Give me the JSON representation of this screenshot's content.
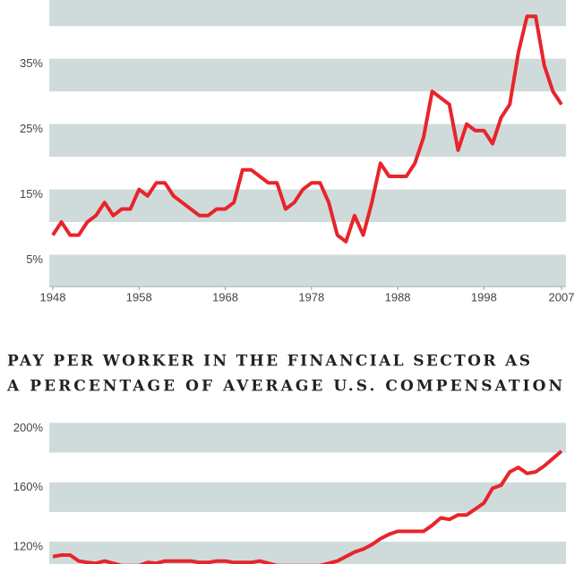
{
  "chart_data": [
    {
      "type": "line",
      "x": [
        1948,
        1949,
        1950,
        1951,
        1952,
        1953,
        1954,
        1955,
        1956,
        1957,
        1958,
        1959,
        1960,
        1961,
        1962,
        1963,
        1964,
        1965,
        1966,
        1967,
        1968,
        1969,
        1970,
        1971,
        1972,
        1973,
        1974,
        1975,
        1976,
        1977,
        1978,
        1979,
        1980,
        1981,
        1982,
        1983,
        1984,
        1985,
        1986,
        1987,
        1988,
        1989,
        1990,
        1991,
        1992,
        1993,
        1994,
        1995,
        1996,
        1997,
        1998,
        1999,
        2000,
        2001,
        2002,
        2003,
        2004,
        2005,
        2006,
        2007
      ],
      "values": [
        8,
        10,
        8,
        8,
        10,
        11,
        13,
        11,
        12,
        12,
        15,
        14,
        16,
        16,
        14,
        13,
        12,
        11,
        11,
        12,
        12,
        13,
        18,
        18,
        17,
        16,
        16,
        12,
        13,
        15,
        16,
        16,
        13,
        8,
        7,
        11,
        8,
        13,
        19,
        17,
        17,
        17,
        19,
        23,
        30,
        29,
        28,
        21,
        25,
        24,
        24,
        22,
        26,
        28,
        36,
        41.5,
        41.5,
        34,
        30,
        28
      ],
      "color": "#e8242c",
      "xlim": [
        1948,
        2007
      ],
      "xticks": [
        1948,
        1958,
        1968,
        1978,
        1988,
        1998,
        2007
      ],
      "ylim": [
        0,
        44
      ],
      "yticks": [
        {
          "value": 5,
          "label": "5%"
        },
        {
          "value": 15,
          "label": "15%"
        },
        {
          "value": 25,
          "label": "25%"
        },
        {
          "value": 35,
          "label": "35%"
        }
      ],
      "grid": "bands"
    },
    {
      "type": "line",
      "title": [
        "PAY PER WORKER IN THE FINANCIAL SECTOR AS",
        "A PERCENTAGE OF AVERAGE U.S. COMPENSATION"
      ],
      "x": [
        1948,
        1949,
        1950,
        1951,
        1952,
        1953,
        1954,
        1955,
        1956,
        1957,
        1958,
        1959,
        1960,
        1961,
        1962,
        1963,
        1964,
        1965,
        1966,
        1967,
        1968,
        1969,
        1970,
        1971,
        1972,
        1973,
        1974,
        1975,
        1976,
        1977,
        1978,
        1979,
        1980,
        1981,
        1982,
        1983,
        1984,
        1985,
        1986,
        1987,
        1988,
        1989,
        1990,
        1991,
        1992,
        1993,
        1994,
        1995,
        1996,
        1997,
        1998,
        1999,
        2000,
        2001,
        2002,
        2003,
        2004,
        2005,
        2006,
        2007
      ],
      "values": [
        110,
        111,
        111,
        107,
        106,
        105.5,
        107,
        105.5,
        104,
        104,
        104,
        106,
        105.5,
        107,
        107,
        107,
        107,
        106,
        106,
        107,
        107,
        106,
        106,
        106,
        107,
        105.5,
        104,
        104,
        104,
        104,
        104,
        104,
        105.5,
        107,
        110,
        113,
        115,
        118,
        122,
        125,
        127,
        127,
        127,
        127,
        131,
        136,
        135,
        138,
        138,
        142,
        146,
        156,
        158,
        167,
        170,
        166,
        167,
        171,
        176,
        181
      ],
      "color": "#e8242c",
      "xlim": [
        1948,
        2007
      ],
      "ylim": [
        105,
        202
      ],
      "yticks": [
        {
          "value": 120,
          "label": "120%"
        },
        {
          "value": 160,
          "label": "160%"
        },
        {
          "value": 200,
          "label": "200%"
        }
      ],
      "grid": "bands"
    }
  ]
}
